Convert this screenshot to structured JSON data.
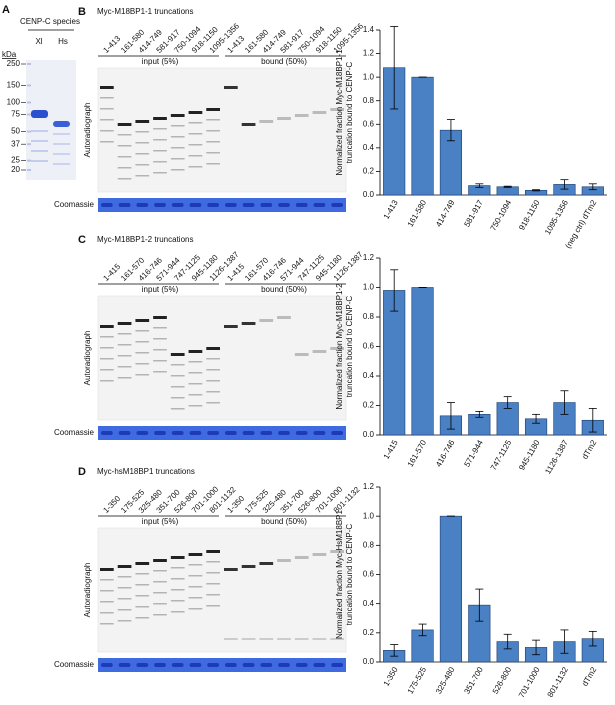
{
  "panels": [
    {
      "letter": "A",
      "title": "CENP-C species",
      "lanes": [
        "Xl",
        "Hs"
      ],
      "unit": "kDa",
      "markers": [
        250,
        150,
        100,
        75,
        50,
        37,
        25,
        20
      ]
    },
    {
      "letter": "B",
      "title": "Myc-M18BP1-1 truncations",
      "lanes": [
        "1-413",
        "161-580",
        "414-749",
        "581-917",
        "750-1094",
        "918-1150",
        "1095-1356"
      ],
      "input_label": "input (5%)",
      "bound_label": "bound (50%)",
      "gel_label": "Autoradiograph",
      "stain_label": "Coomassie"
    },
    {
      "letter": "C",
      "title": "Myc-M18BP1-2 truncations",
      "lanes": [
        "1-415",
        "161-570",
        "416-746",
        "571-944",
        "747-1125",
        "945-1180",
        "1126-1387"
      ],
      "input_label": "input (5%)",
      "bound_label": "bound (50%)",
      "gel_label": "Autoradiograph",
      "stain_label": "Coomassie"
    },
    {
      "letter": "D",
      "title": "Myc-hsM18BP1 truncations",
      "lanes": [
        "1-350",
        "175-525",
        "325-480",
        "351-700",
        "526-800",
        "701-1000",
        "801-1132"
      ],
      "input_label": "input (5%)",
      "bound_label": "bound (50%)",
      "gel_label": "Autoradiograph",
      "stain_label": "Coomassie"
    }
  ],
  "chart_data": [
    {
      "type": "bar",
      "ylabel": [
        "Normalized fraction Myc-M18BP1-1",
        "truncation bound to CENP-C"
      ],
      "categories": [
        "1-413",
        "161-580",
        "414-749",
        "581-917",
        "750-1094",
        "918-1150",
        "1095-1356",
        "(neg ctrl) dTm2"
      ],
      "values": [
        1.08,
        1.0,
        0.55,
        0.08,
        0.07,
        0.04,
        0.09,
        0.07
      ],
      "errors": [
        0.35,
        0,
        0.09,
        0.015,
        0.005,
        0.005,
        0.04,
        0.025
      ],
      "color": "#4a80c4",
      "ylim": [
        0,
        1.4
      ],
      "yticks": [
        {
          "value": 0,
          "label": "0.0"
        },
        0.2,
        0.4,
        0.6,
        0.8,
        {
          "value": 1,
          "label": "1.0"
        },
        1.2,
        1.4
      ]
    },
    {
      "type": "bar",
      "ylabel": [
        "Normalized fraction Myc-M18BP1-2",
        "truncation bound to CENP-C"
      ],
      "categories": [
        "1-415",
        "161-570",
        "416-746",
        "571-944",
        "747-1125",
        "945-1180",
        "1126-1387",
        "dTm2"
      ],
      "values": [
        0.98,
        1.0,
        0.13,
        0.14,
        0.22,
        0.11,
        0.22,
        0.1
      ],
      "errors": [
        0.14,
        0,
        0.09,
        0.02,
        0.04,
        0.03,
        0.08,
        0.08
      ],
      "color": "#4a80c4",
      "ylim": [
        0,
        1.2
      ],
      "yticks": [
        {
          "value": 0,
          "label": "0.0"
        },
        0.2,
        0.4,
        0.6,
        0.8,
        {
          "value": 1,
          "label": "1.0"
        },
        1.2
      ]
    },
    {
      "type": "bar",
      "ylabel": [
        "Normalized fraction Myc-HsM18BP1",
        "truncation bound to CENP-C"
      ],
      "categories": [
        "1-350",
        "175-525",
        "325-480",
        "351-700",
        "526-800",
        "701-1000",
        "801-1132",
        "dTm2"
      ],
      "values": [
        0.08,
        0.22,
        1.0,
        0.39,
        0.14,
        0.1,
        0.14,
        0.16
      ],
      "errors": [
        0.04,
        0.04,
        0,
        0.11,
        0.05,
        0.05,
        0.08,
        0.05
      ],
      "color": "#4a80c4",
      "ylim": [
        0,
        1.2
      ],
      "yticks": [
        {
          "value": 0,
          "label": "0.0"
        },
        0.2,
        0.4,
        0.6,
        0.8,
        {
          "value": 1,
          "label": "1.0"
        },
        1.2
      ]
    }
  ]
}
